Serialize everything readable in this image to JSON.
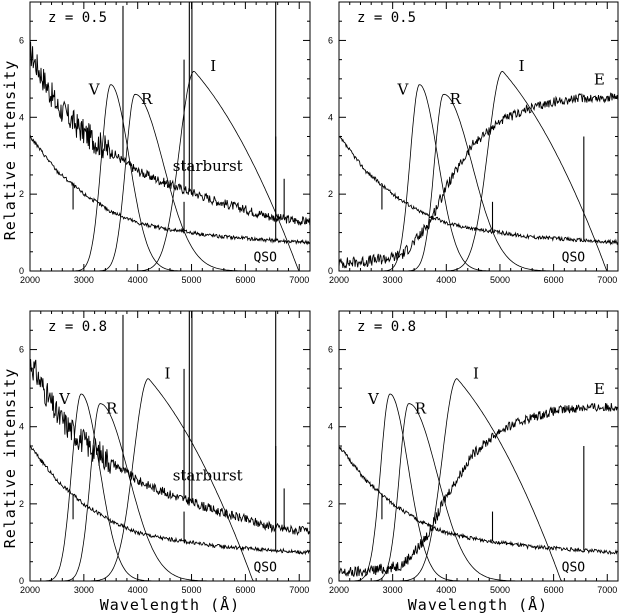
{
  "figure": {
    "ylabel": "Relative intensity",
    "xlabel": "Wavelength (Å)",
    "x_ticks": [
      2000,
      3000,
      4000,
      5000,
      6000,
      7000
    ],
    "y_ticks": [
      0,
      2,
      4,
      6
    ]
  },
  "chart_data": [
    {
      "type": "line",
      "z_label": "z = 0.5",
      "xlim": [
        2000,
        7200
      ],
      "ylim": [
        0,
        7
      ],
      "filters": [
        {
          "name": "V",
          "peak_x": 3500,
          "peak_y": 4.85
        },
        {
          "name": "R",
          "peak_x": 3950,
          "peak_y": 4.6
        },
        {
          "name": "I",
          "peak_x": 5050,
          "peak_y": 5.2
        }
      ],
      "spectra": [
        {
          "name": "starburst",
          "x": [
            2000,
            2500,
            3000,
            3500,
            4000,
            4500,
            5000,
            5500,
            6000,
            6500,
            7000,
            7200
          ],
          "y": [
            5.7,
            4.3,
            3.6,
            3.1,
            2.6,
            2.3,
            2.05,
            1.8,
            1.6,
            1.4,
            1.3,
            1.3
          ]
        },
        {
          "name": "QSO",
          "x": [
            2000,
            2500,
            3000,
            3500,
            4000,
            4500,
            5000,
            5500,
            6000,
            6500,
            7000,
            7200
          ],
          "y": [
            3.5,
            2.6,
            2.0,
            1.55,
            1.25,
            1.1,
            1.0,
            0.9,
            0.85,
            0.8,
            0.75,
            0.75
          ]
        }
      ]
    },
    {
      "type": "line",
      "z_label": "z = 0.5",
      "xlim": [
        2000,
        7200
      ],
      "ylim": [
        0,
        7
      ],
      "filters": [
        {
          "name": "V",
          "peak_x": 3500,
          "peak_y": 4.85
        },
        {
          "name": "R",
          "peak_x": 3950,
          "peak_y": 4.6
        },
        {
          "name": "I",
          "peak_x": 5050,
          "peak_y": 5.2
        }
      ],
      "spectra": [
        {
          "name": "E",
          "x": [
            2000,
            2500,
            3000,
            3200,
            3500,
            3700,
            4000,
            4500,
            5000,
            5500,
            6000,
            6500,
            7000,
            7200
          ],
          "y": [
            0.2,
            0.25,
            0.35,
            0.45,
            0.9,
            1.3,
            2.2,
            3.3,
            3.9,
            4.2,
            4.4,
            4.5,
            4.5,
            4.55
          ]
        },
        {
          "name": "QSO",
          "x": [
            2000,
            2500,
            3000,
            3500,
            4000,
            4500,
            5000,
            5500,
            6000,
            6500,
            7000,
            7200
          ],
          "y": [
            3.5,
            2.6,
            2.0,
            1.55,
            1.25,
            1.1,
            1.0,
            0.9,
            0.85,
            0.8,
            0.75,
            0.75
          ]
        }
      ]
    },
    {
      "type": "line",
      "z_label": "z = 0.8",
      "xlim": [
        2000,
        7200
      ],
      "ylim": [
        0,
        7
      ],
      "filters": [
        {
          "name": "V",
          "peak_x": 2950,
          "peak_y": 4.85
        },
        {
          "name": "R",
          "peak_x": 3300,
          "peak_y": 4.6
        },
        {
          "name": "I",
          "peak_x": 4200,
          "peak_y": 5.25
        }
      ],
      "spectra": [
        {
          "name": "starburst",
          "x": [
            2000,
            2500,
            3000,
            3500,
            4000,
            4500,
            5000,
            5500,
            6000,
            6500,
            7000,
            7200
          ],
          "y": [
            5.7,
            4.3,
            3.6,
            3.1,
            2.6,
            2.3,
            2.05,
            1.8,
            1.6,
            1.4,
            1.3,
            1.3
          ]
        },
        {
          "name": "QSO",
          "x": [
            2000,
            2500,
            3000,
            3500,
            4000,
            4500,
            5000,
            5500,
            6000,
            6500,
            7000,
            7200
          ],
          "y": [
            3.5,
            2.6,
            2.0,
            1.55,
            1.25,
            1.1,
            1.0,
            0.9,
            0.85,
            0.8,
            0.75,
            0.75
          ]
        }
      ]
    },
    {
      "type": "line",
      "z_label": "z = 0.8",
      "xlim": [
        2000,
        7200
      ],
      "ylim": [
        0,
        7
      ],
      "filters": [
        {
          "name": "V",
          "peak_x": 2950,
          "peak_y": 4.85
        },
        {
          "name": "R",
          "peak_x": 3300,
          "peak_y": 4.6
        },
        {
          "name": "I",
          "peak_x": 4200,
          "peak_y": 5.25
        }
      ],
      "spectra": [
        {
          "name": "E",
          "x": [
            2000,
            2500,
            3000,
            3200,
            3500,
            3700,
            4000,
            4500,
            5000,
            5500,
            6000,
            6500,
            7000,
            7200
          ],
          "y": [
            0.2,
            0.25,
            0.35,
            0.45,
            0.9,
            1.3,
            2.2,
            3.3,
            3.9,
            4.2,
            4.4,
            4.5,
            4.5,
            4.55
          ]
        },
        {
          "name": "QSO",
          "x": [
            2000,
            2500,
            3000,
            3500,
            4000,
            4500,
            5000,
            5500,
            6000,
            6500,
            7000,
            7200
          ],
          "y": [
            3.5,
            2.6,
            2.0,
            1.55,
            1.25,
            1.1,
            1.0,
            0.9,
            0.85,
            0.8,
            0.75,
            0.75
          ]
        }
      ]
    }
  ]
}
